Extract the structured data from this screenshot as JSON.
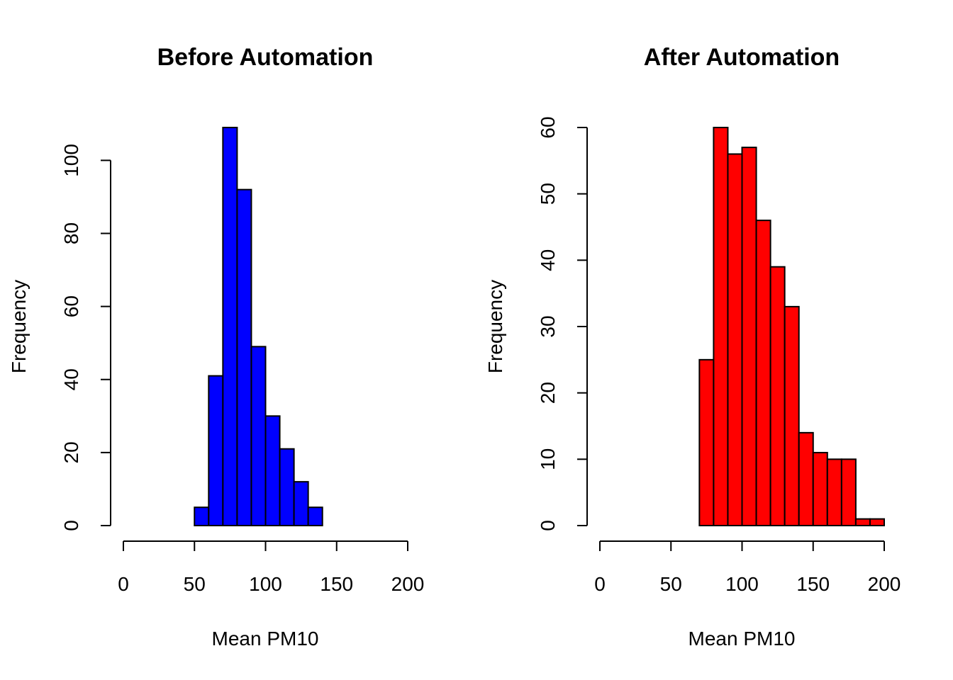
{
  "chart_data": [
    {
      "type": "bar",
      "title": "Before Automation",
      "xlabel": "Mean PM10",
      "ylabel": "Frequency",
      "bar_color": "#0000ff",
      "bin_edges": [
        50,
        60,
        70,
        80,
        90,
        100,
        110,
        120,
        130,
        140
      ],
      "values": [
        5,
        41,
        109,
        92,
        49,
        30,
        21,
        12,
        5
      ],
      "xlim": [
        0,
        200
      ],
      "ylim": [
        0,
        109
      ],
      "x_ticks": [
        "0",
        "50",
        "100",
        "150",
        "200"
      ],
      "y_ticks": [
        "0",
        "20",
        "40",
        "60",
        "80",
        "100"
      ],
      "grid": false
    },
    {
      "type": "bar",
      "title": "After Automation",
      "xlabel": "Mean PM10",
      "ylabel": "Frequency",
      "bar_color": "#ff0000",
      "bin_edges": [
        70,
        80,
        90,
        100,
        110,
        120,
        130,
        140,
        150,
        160,
        170,
        180,
        190,
        200
      ],
      "values": [
        25,
        60,
        56,
        57,
        46,
        39,
        33,
        14,
        11,
        10,
        10,
        1,
        1
      ],
      "xlim": [
        0,
        200
      ],
      "ylim": [
        0,
        60
      ],
      "x_ticks": [
        "0",
        "50",
        "100",
        "150",
        "200"
      ],
      "y_ticks": [
        "0",
        "10",
        "20",
        "30",
        "40",
        "50",
        "60"
      ],
      "grid": false
    }
  ]
}
